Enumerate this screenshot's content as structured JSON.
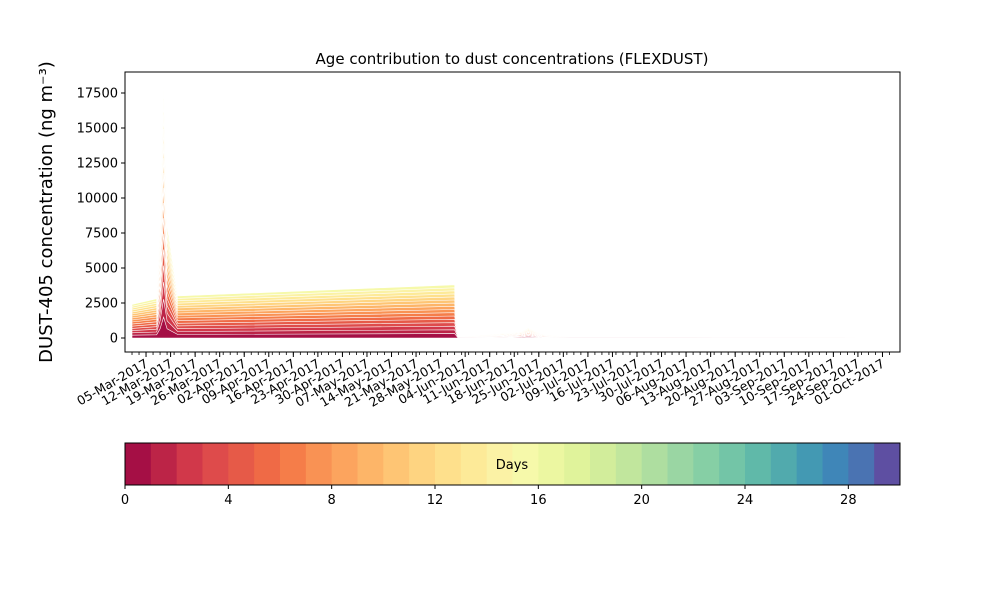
{
  "chart_data": {
    "type": "area",
    "title": "Age contribution to dust concentrations (FLEXDUST)",
    "xlabel": "",
    "ylabel": "DUST-405 concentration (ng m⁻³)",
    "ylim": [
      -1000,
      19000
    ],
    "yticks": [
      0,
      2500,
      5000,
      7500,
      10000,
      12500,
      15000,
      17500
    ],
    "x_ticks_dates": [
      "05-Mar-2017",
      "12-Mar-2017",
      "19-Mar-2017",
      "26-Mar-2017",
      "02-Apr-2017",
      "09-Apr-2017",
      "16-Apr-2017",
      "23-Apr-2017",
      "30-Apr-2017",
      "07-May-2017",
      "14-May-2017",
      "21-May-2017",
      "28-May-2017",
      "04-Jun-2017",
      "11-Jun-2017",
      "18-Jun-2017",
      "25-Jun-2017",
      "02-Jul-2017",
      "09-Jul-2017",
      "16-Jul-2017",
      "23-Jul-2017",
      "30-Jul-2017",
      "06-Aug-2017",
      "13-Aug-2017",
      "20-Aug-2017",
      "27-Aug-2017",
      "03-Sep-2017",
      "10-Sep-2017",
      "17-Sep-2017",
      "24-Sep-2017",
      "01-Oct-2017"
    ],
    "series_by_age_days": [
      0,
      1,
      2,
      3,
      4,
      5,
      6,
      7,
      8,
      9,
      10,
      11,
      12,
      13,
      14,
      15,
      16,
      17,
      18,
      19,
      20,
      21,
      22,
      23,
      24,
      25,
      26,
      27,
      28,
      29
    ],
    "total": {
      "x": [
        "01-Mar-2017",
        "08-Mar-2017",
        "09-Mar-2017",
        "10-Mar-2017",
        "11-Mar-2017",
        "14-Mar-2017",
        "01-Jun-2017",
        "02-Jun-2017",
        "15-Jun-2017",
        "20-Jun-2017",
        "22-Jun-2017",
        "26-Jun-2017",
        "04-Jul-2017",
        "20-Jul-2017",
        "28-Jul-2017",
        "31-Jul-2017",
        "15-Aug-2017",
        "23-Sep-2017"
      ],
      "y": [
        2400,
        2800,
        8000,
        18000,
        8000,
        3000,
        3800,
        50,
        300,
        450,
        700,
        250,
        50,
        60,
        50,
        60,
        30,
        20
      ]
    },
    "colorbar": {
      "label": "Days",
      "min": 0,
      "max": 30,
      "ticks": [
        0,
        4,
        8,
        12,
        16,
        20,
        24,
        28
      ],
      "colors": [
        "#a50f45",
        "#bc2447",
        "#d1384a",
        "#de4b4b",
        "#e65a48",
        "#ef6a46",
        "#f57d49",
        "#f99254",
        "#fca45e",
        "#fdb568",
        "#fec574",
        "#fed481",
        "#fee08c",
        "#fdea98",
        "#fbf2a5",
        "#f6f9aa",
        "#ecf7a1",
        "#e0f39b",
        "#d2ed9b",
        "#c1e69d",
        "#aedea0",
        "#9ad6a3",
        "#86cfa5",
        "#73c5a7",
        "#60b9a9",
        "#51aaad",
        "#4399b3",
        "#3f86b8",
        "#4a73b2",
        "#5e4fa2"
      ]
    }
  }
}
